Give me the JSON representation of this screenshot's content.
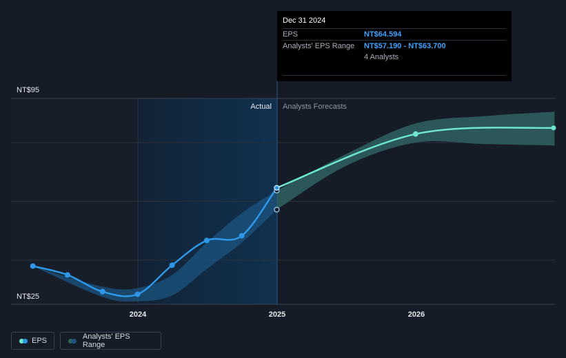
{
  "tooltip": {
    "title": "Dec 31 2024",
    "eps_label": "EPS",
    "eps_value": "NT$64.594",
    "range_label": "Analysts' EPS Range",
    "range_value": "NT$57.190 - NT$63.700",
    "analysts": "4 Analysts"
  },
  "legend": {
    "eps_label": "EPS",
    "range_label": "Analysts' EPS Range"
  },
  "colors": {
    "background": "#151b27",
    "actual_region": "#10314f",
    "eps_actual": "#2e97e8",
    "eps_forecast": "#6ee6cf",
    "range_band_actual": "#1c5480",
    "range_band_forecast": "#2f6161",
    "tooltip_value": "#3ba3ff"
  },
  "chart_data": {
    "type": "line",
    "title": "",
    "xlabel": "",
    "ylabel": "",
    "ylim": [
      25,
      95
    ],
    "y_tick_labels": [
      "NT$95",
      "NT$25"
    ],
    "x_tick_labels": [
      "2024",
      "2025",
      "2026"
    ],
    "section_labels": {
      "actual": "Actual",
      "forecast": "Analysts Forecasts"
    },
    "grid": true,
    "legend_position": "bottom-left",
    "series": [
      {
        "name": "EPS",
        "kind": "actual",
        "points": [
          {
            "x": "2023-03-31",
            "y": 38.0
          },
          {
            "x": "2023-06-30",
            "y": 35.0
          },
          {
            "x": "2023-09-30",
            "y": 29.3
          },
          {
            "x": "2023-12-31",
            "y": 28.4
          },
          {
            "x": "2024-03-31",
            "y": 38.3
          },
          {
            "x": "2024-06-30",
            "y": 46.7
          },
          {
            "x": "2024-09-30",
            "y": 48.3
          },
          {
            "x": "2024-12-31",
            "y": 64.6
          }
        ]
      },
      {
        "name": "EPS",
        "kind": "forecast",
        "points": [
          {
            "x": "2024-12-31",
            "y": 64.6
          },
          {
            "x": "2025-12-31",
            "y": 82.9
          },
          {
            "x": "2026-12-31",
            "y": 85.0
          }
        ]
      },
      {
        "name": "Analysts' EPS Range",
        "kind": "band",
        "points": [
          {
            "x": "2023-03-31",
            "low": 38.0,
            "high": 38.0
          },
          {
            "x": "2023-09-30",
            "low": 27.5,
            "high": 31.0
          },
          {
            "x": "2023-12-31",
            "low": 26.0,
            "high": 30.5
          },
          {
            "x": "2024-03-31",
            "low": 28.0,
            "high": 35.0
          },
          {
            "x": "2024-06-30",
            "low": 37.0,
            "high": 46.0
          },
          {
            "x": "2024-09-30",
            "low": 46.0,
            "high": 56.0
          },
          {
            "x": "2024-12-31",
            "low": 57.19,
            "high": 63.7
          },
          {
            "x": "2025-06-30",
            "low": 72.0,
            "high": 76.0
          },
          {
            "x": "2025-12-31",
            "low": 80.0,
            "high": 86.5
          },
          {
            "x": "2026-06-30",
            "low": 79.5,
            "high": 89.0
          },
          {
            "x": "2026-12-31",
            "low": 79.0,
            "high": 90.5
          }
        ]
      },
      {
        "name": "EPS",
        "kind": "marker",
        "points": [
          {
            "x": "2024-12-31",
            "y": 57.19
          },
          {
            "x": "2024-12-31",
            "y": 63.7
          }
        ]
      }
    ]
  }
}
